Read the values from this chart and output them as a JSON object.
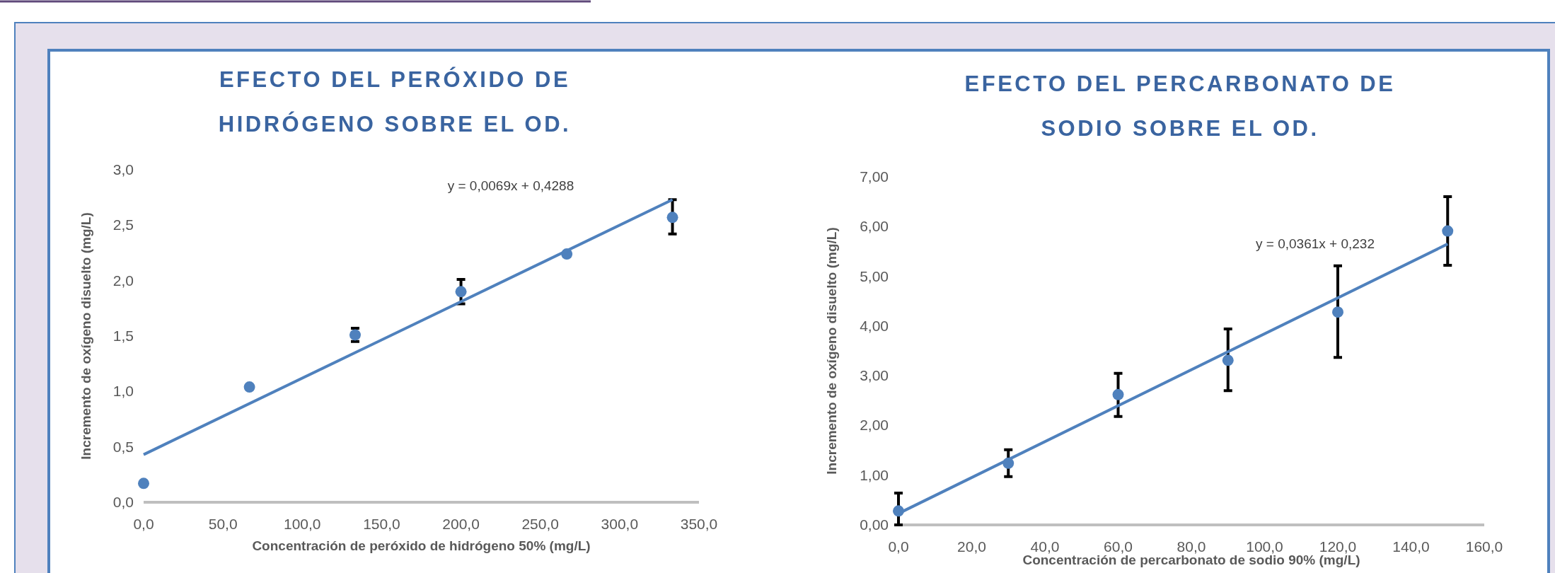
{
  "chart_data": [
    {
      "type": "scatter",
      "title": "EFECTO DEL PERÓXIDO DE HIDRÓGENO SOBRE EL OD.",
      "xlabel": "Concentración de peróxido de hidrógeno 50% (mg/L)",
      "ylabel": "Incremento de oxígeno disuelto (mg/L)",
      "xlim": [
        0,
        350
      ],
      "xticks": [
        {
          "value": 0,
          "label": "0,0"
        },
        {
          "value": 50,
          "label": "50,0"
        },
        {
          "value": 100,
          "label": "100,0"
        },
        {
          "value": 150,
          "label": "150,0"
        },
        {
          "value": 200,
          "label": "200,0"
        },
        {
          "value": 250,
          "label": "250,0"
        },
        {
          "value": 300,
          "label": "300,0"
        },
        {
          "value": 350,
          "label": "350,0"
        }
      ],
      "ylim": [
        0,
        3
      ],
      "yticks": [
        {
          "value": 0,
          "label": "0,0"
        },
        {
          "value": 0.5,
          "label": "0,5"
        },
        {
          "value": 1,
          "label": "1,0"
        },
        {
          "value": 1.5,
          "label": "1,5"
        },
        {
          "value": 2,
          "label": "2,0"
        },
        {
          "value": 2.5,
          "label": "2,5"
        },
        {
          "value": 3,
          "label": "3,0"
        }
      ],
      "grid": false,
      "marker": "circle",
      "series": [
        {
          "color": "#4f81bd",
          "x": [
            0,
            66.7,
            133.3,
            200,
            266.7,
            333.3
          ],
          "values": [
            0.17,
            1.04,
            1.51,
            1.9,
            2.24,
            2.57
          ],
          "errors": [
            null,
            null,
            0.06,
            0.11,
            0.02,
            [
              2.42,
              2.73
            ]
          ]
        },
        {
          "type": "line",
          "marker": "none",
          "color": "#4f81bd",
          "x": [
            0,
            333.3
          ],
          "values": [
            0.43,
            2.73
          ]
        }
      ],
      "annotations": [
        "y = 0,0069x + 0,4288"
      ]
    },
    {
      "type": "scatter",
      "title": "EFECTO DEL PERCARBONATO DE SODIO SOBRE EL OD.",
      "xlabel": "Concentración de percarbonato de sodio 90% (mg/L)",
      "ylabel": "Incremento de oxígeno disuelto (mg/L)",
      "xlim": [
        0,
        160
      ],
      "xticks": [
        {
          "value": 0,
          "label": "0,0"
        },
        {
          "value": 20,
          "label": "20,0"
        },
        {
          "value": 40,
          "label": "40,0"
        },
        {
          "value": 60,
          "label": "60,0"
        },
        {
          "value": 80,
          "label": "80,0"
        },
        {
          "value": 100,
          "label": "100,0"
        },
        {
          "value": 120,
          "label": "120,0"
        },
        {
          "value": 140,
          "label": "140,0"
        },
        {
          "value": 160,
          "label": "160,0"
        }
      ],
      "ylim": [
        0,
        7
      ],
      "yticks": [
        {
          "value": 0,
          "label": "0,00"
        },
        {
          "value": 1,
          "label": "1,00"
        },
        {
          "value": 2,
          "label": "2,00"
        },
        {
          "value": 3,
          "label": "3,00"
        },
        {
          "value": 4,
          "label": "4,00"
        },
        {
          "value": 5,
          "label": "5,00"
        },
        {
          "value": 6,
          "label": "6,00"
        },
        {
          "value": 7,
          "label": "7,00"
        }
      ],
      "grid": false,
      "marker": "circle",
      "series": [
        {
          "color": "#4f81bd",
          "x": [
            0,
            30,
            60,
            90,
            120,
            150
          ],
          "values": [
            0.28,
            1.24,
            2.62,
            3.31,
            4.28,
            5.91
          ],
          "errors": [
            [
              0,
              0.64
            ],
            [
              0.97,
              1.51
            ],
            [
              2.18,
              3.05
            ],
            [
              2.7,
              3.94
            ],
            [
              3.37,
              5.21
            ],
            [
              5.22,
              6.6
            ]
          ]
        },
        {
          "type": "line",
          "marker": "none",
          "color": "#4f81bd",
          "x": [
            0,
            150
          ],
          "values": [
            0.23,
            5.65
          ]
        }
      ],
      "annotations": [
        "y = 0,0361x + 0,232"
      ]
    }
  ]
}
